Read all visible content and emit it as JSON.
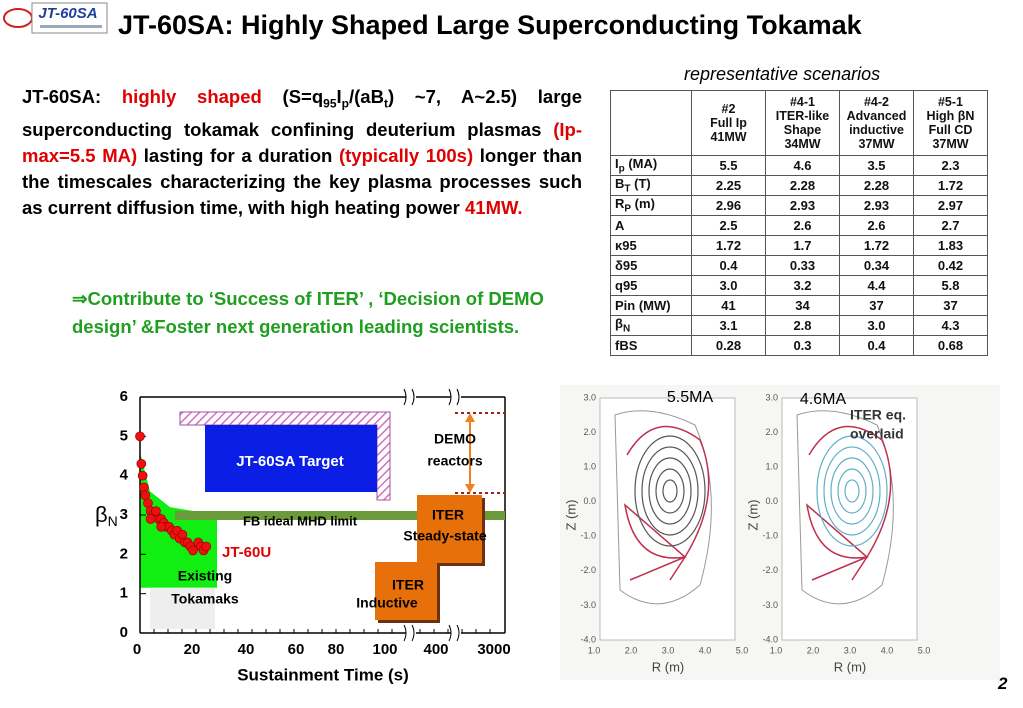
{
  "logo": "JT-60SA",
  "title": "JT-60SA: Highly Shaped Large Superconducting Tokamak",
  "intro": [
    {
      "text": "JT-60SA: "
    },
    {
      "text": "highly shaped",
      "color": "#e00000"
    },
    {
      "text": " (S=q"
    },
    {
      "text": "95",
      "sub": true
    },
    {
      "text": "I"
    },
    {
      "text": "p",
      "sub": true
    },
    {
      "text": "/(aB"
    },
    {
      "text": "t",
      "sub": true
    },
    {
      "text": ")  ~7, A~2.5) large superconducting tokamak confining deuterium plasmas "
    },
    {
      "text": "(Ip-max=5.5 MA)",
      "color": "#e00000"
    },
    {
      "text": " lasting for a duration "
    },
    {
      "text": "(typically 100s)",
      "color": "#e00000"
    },
    {
      "text": " longer than the timescales characterizing the key plasma processes such as current diffusion time, with high heating power "
    },
    {
      "text": "41MW.",
      "color": "#e00000"
    }
  ],
  "bullet": "⇒Contribute to ‘Success of ITER’ , ‘Decision of DEMO design’ &Foster next generation leading scientists.",
  "table": {
    "caption": "representative scenarios",
    "header": [
      [
        "#2",
        "Full Ip",
        "41MW"
      ],
      [
        "#4-1",
        "ITER-like",
        "Shape",
        "34MW"
      ],
      [
        "#4-2",
        "Advanced",
        "inductive",
        "37MW"
      ],
      [
        "#5-1",
        "High βN",
        "Full CD",
        "37MW"
      ]
    ],
    "rows": [
      {
        "label": {
          "base": "I",
          "sub": "p",
          "rest": " (MA)"
        },
        "cells": [
          "5.5",
          "4.6",
          "3.5",
          "2.3"
        ]
      },
      {
        "label": {
          "base": "B",
          "sub": "T",
          "rest": " (T)"
        },
        "cells": [
          "2.25",
          "2.28",
          "2.28",
          "1.72"
        ]
      },
      {
        "label": {
          "base": "R",
          "sub": "P",
          "rest": " (m)"
        },
        "cells": [
          "2.96",
          "2.93",
          "2.93",
          "2.97"
        ]
      },
      {
        "label": {
          "base": "A"
        },
        "cells": [
          "2.5",
          "2.6",
          "2.6",
          "2.7"
        ]
      },
      {
        "label": {
          "base": "κ95"
        },
        "cells": [
          "1.72",
          "1.7",
          "1.72",
          "1.83"
        ]
      },
      {
        "label": {
          "base": "δ95"
        },
        "cells": [
          "0.4",
          "0.33",
          "0.34",
          "0.42"
        ]
      },
      {
        "label": {
          "base": "q95"
        },
        "cells": [
          "3.0",
          "3.2",
          "4.4",
          "5.8"
        ]
      },
      {
        "label": {
          "base": "Pin (MW)"
        },
        "cells": [
          "41",
          "34",
          "37",
          "37"
        ]
      },
      {
        "label": {
          "base": "β",
          "sub": "N"
        },
        "cells": [
          "3.1",
          "2.8",
          "3.0",
          "4.3"
        ]
      },
      {
        "label": {
          "base": "fBS"
        },
        "cells": [
          "0.28",
          "0.3",
          "0.4",
          "0.68"
        ]
      }
    ]
  },
  "beta_chart": {
    "ylabel": "β",
    "ylabel_sub": "N",
    "ylim": [
      0,
      6
    ],
    "yticks": [
      0,
      1,
      2,
      3,
      4,
      5,
      6
    ],
    "xticks": [
      "0",
      "20",
      "40",
      "60",
      "80",
      "100",
      "400",
      "3000"
    ],
    "xlabel": "Sustainment Time (s)",
    "target": "JT-60SA Target",
    "limit": "FB ideal MHD limit",
    "demo": [
      "DEMO",
      "reactors"
    ],
    "iter_ss": [
      "ITER",
      "Steady-state"
    ],
    "iter_ind": [
      "ITER",
      "Inductive"
    ],
    "jt60u": "JT-60U",
    "existing": [
      "Existing",
      "Tokamaks"
    ],
    "jt60u_points": {
      "t": [
        0,
        0.5,
        1,
        1.5,
        2,
        3,
        4,
        5,
        6,
        7,
        8,
        9,
        10,
        11,
        12,
        13,
        14,
        15,
        16,
        17,
        18,
        19,
        20,
        22,
        23,
        24,
        25,
        4,
        6,
        8
      ],
      "betaN": [
        5.0,
        4.3,
        4.0,
        3.7,
        3.5,
        3.3,
        3.1,
        3.0,
        3.0,
        2.9,
        2.9,
        2.8,
        2.7,
        2.7,
        2.6,
        2.5,
        2.6,
        2.4,
        2.5,
        2.3,
        2.3,
        2.2,
        2.1,
        2.3,
        2.2,
        2.1,
        2.2,
        2.9,
        3.1,
        2.7
      ]
    }
  },
  "equilibria": [
    {
      "label": "5.5MA",
      "ylabel": "Z (m)",
      "xlabel": "R (m)",
      "yticks": [
        "3.0",
        "2.0",
        "1.0",
        "0.0",
        "-1.0",
        "-2.0",
        "-3.0",
        "-4.0"
      ],
      "xticks": [
        "1.0",
        "2.0",
        "3.0",
        "4.0",
        "5.0"
      ]
    },
    {
      "label": "4.6MA",
      "note": [
        "ITER eq.",
        "overlaid"
      ],
      "ylabel": "Z (m)",
      "xlabel": "R (m)",
      "yticks": [
        "3.0",
        "2.0",
        "1.0",
        "0.0",
        "-1.0",
        "-2.0",
        "-3.0",
        "-4.0"
      ],
      "xticks": [
        "1.0",
        "2.0",
        "3.0",
        "4.0",
        "5.0"
      ]
    }
  ],
  "page_number": "2"
}
